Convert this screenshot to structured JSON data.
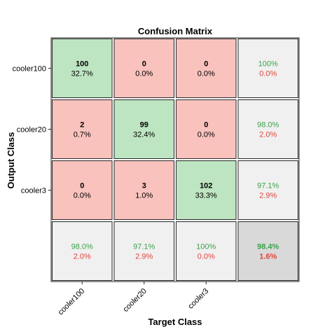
{
  "chart_data": {
    "type": "heatmap",
    "title": "Confusion Matrix",
    "xlabel": "Target Class",
    "ylabel": "Output Class",
    "classes": [
      "cooler100",
      "cooler20",
      "cooler3"
    ],
    "matrix": [
      [
        {
          "count": "100",
          "percent": "32.7%"
        },
        {
          "count": "0",
          "percent": "0.0%"
        },
        {
          "count": "0",
          "percent": "0.0%"
        }
      ],
      [
        {
          "count": "2",
          "percent": "0.7%"
        },
        {
          "count": "99",
          "percent": "32.4%"
        },
        {
          "count": "0",
          "percent": "0.0%"
        }
      ],
      [
        {
          "count": "0",
          "percent": "0.0%"
        },
        {
          "count": "3",
          "percent": "1.0%"
        },
        {
          "count": "102",
          "percent": "33.3%"
        }
      ]
    ],
    "row_summary": [
      {
        "correct": "100%",
        "incorrect": "0.0%"
      },
      {
        "correct": "98.0%",
        "incorrect": "2.0%"
      },
      {
        "correct": "97.1%",
        "incorrect": "2.9%"
      }
    ],
    "column_summary": [
      {
        "correct": "98.0%",
        "incorrect": "2.0%"
      },
      {
        "correct": "97.1%",
        "incorrect": "2.9%"
      },
      {
        "correct": "100%",
        "incorrect": "0.0%"
      }
    ],
    "overall": {
      "correct": "98.4%",
      "incorrect": "1.6%"
    },
    "colors": {
      "diagonal": "#bde5c1",
      "off_diagonal": "#f9c2bd",
      "summary": "#f0f0f0",
      "overall": "#d9d9d9",
      "correct_text": "#3aa24a",
      "incorrect_text": "#e0453e",
      "grid": "#262626"
    }
  }
}
